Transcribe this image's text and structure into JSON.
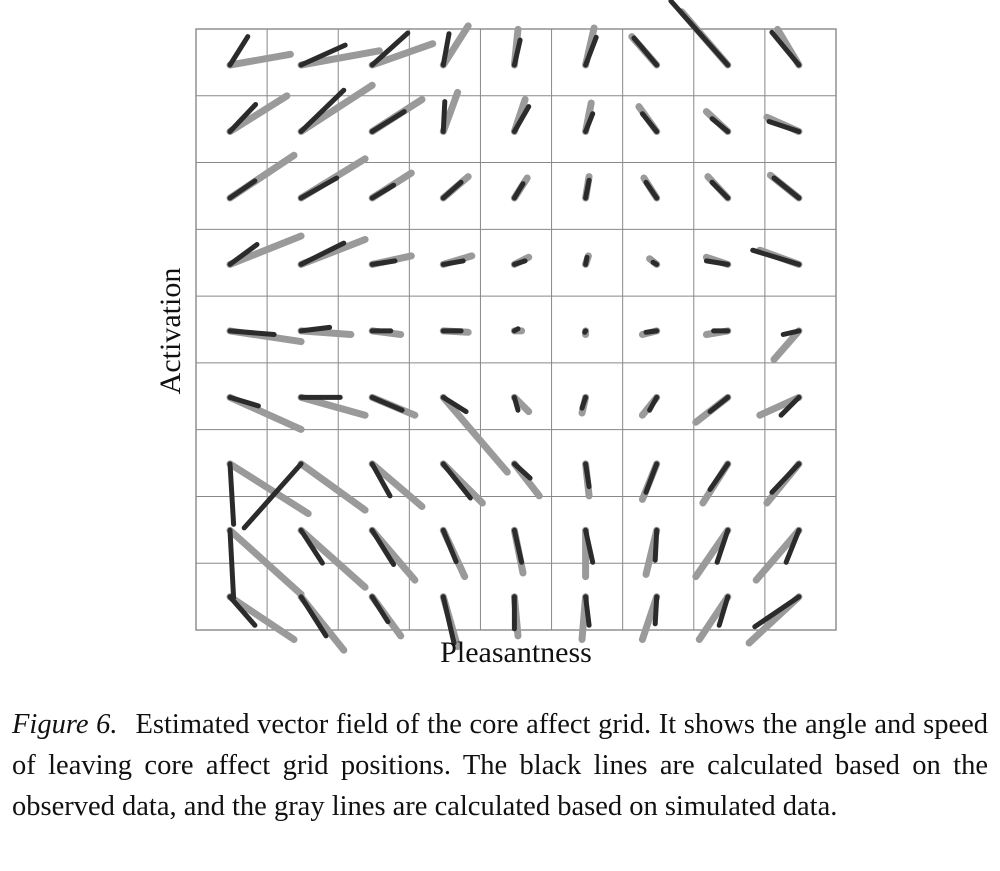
{
  "chart_data": {
    "type": "vector_field",
    "xlabel": "Pleasantness",
    "ylabel": "Activation",
    "grid_size": 9,
    "colors": {
      "observed": "#2b2b2b",
      "simulated": "#9a9a9a",
      "grid": "#888888"
    },
    "observed_vectors": [
      [
        [
          0.25,
          -0.4
        ],
        [
          0.62,
          -0.28
        ],
        [
          0.5,
          -0.45
        ],
        [
          0.08,
          -0.44
        ],
        [
          0.08,
          -0.35
        ],
        [
          0.15,
          -0.39
        ],
        [
          -0.32,
          -0.38
        ],
        [
          -0.8,
          -0.9
        ],
        [
          -0.38,
          -0.46
        ]
      ],
      [
        [
          0.36,
          -0.38
        ],
        [
          0.6,
          -0.58
        ],
        [
          0.45,
          -0.28
        ],
        [
          0.02,
          -0.42
        ],
        [
          0.2,
          -0.35
        ],
        [
          0.1,
          -0.25
        ],
        [
          -0.2,
          -0.25
        ],
        [
          -0.22,
          -0.18
        ],
        [
          -0.42,
          -0.14
        ]
      ],
      [
        [
          0.35,
          -0.24
        ],
        [
          0.5,
          -0.28
        ],
        [
          0.3,
          -0.18
        ],
        [
          0.25,
          -0.22
        ],
        [
          0.12,
          -0.2
        ],
        [
          0.05,
          -0.25
        ],
        [
          -0.15,
          -0.22
        ],
        [
          -0.22,
          -0.22
        ],
        [
          -0.35,
          -0.28
        ]
      ],
      [
        [
          0.38,
          -0.28
        ],
        [
          0.6,
          -0.3
        ],
        [
          0.32,
          -0.05
        ],
        [
          0.28,
          -0.05
        ],
        [
          0.15,
          -0.05
        ],
        [
          0.02,
          -0.1
        ],
        [
          -0.05,
          -0.03
        ],
        [
          -0.3,
          -0.05
        ],
        [
          -0.65,
          -0.2
        ]
      ],
      [
        [
          0.62,
          0.05
        ],
        [
          0.4,
          -0.05
        ],
        [
          0.26,
          0.0
        ],
        [
          0.25,
          0.0
        ],
        [
          0.05,
          -0.03
        ],
        [
          -0.01,
          0.02
        ],
        [
          -0.15,
          0.02
        ],
        [
          -0.2,
          0.0
        ],
        [
          -0.22,
          0.05
        ]
      ],
      [
        [
          0.4,
          0.12
        ],
        [
          0.55,
          0.0
        ],
        [
          0.42,
          0.18
        ],
        [
          0.32,
          0.2
        ],
        [
          0.05,
          0.18
        ],
        [
          -0.05,
          0.15
        ],
        [
          -0.1,
          0.18
        ],
        [
          -0.25,
          0.2
        ],
        [
          -0.25,
          0.25
        ]
      ],
      [
        [
          0.05,
          0.85
        ],
        [
          -0.8,
          0.9
        ],
        [
          0.25,
          0.45
        ],
        [
          0.38,
          0.48
        ],
        [
          0.22,
          0.2
        ],
        [
          0.05,
          0.32
        ],
        [
          -0.15,
          0.4
        ],
        [
          -0.25,
          0.36
        ],
        [
          -0.38,
          0.4
        ]
      ],
      [
        [
          0.05,
          0.95
        ],
        [
          0.3,
          0.46
        ],
        [
          0.3,
          0.48
        ],
        [
          0.18,
          0.44
        ],
        [
          0.1,
          0.45
        ],
        [
          0.1,
          0.45
        ],
        [
          -0.02,
          0.42
        ],
        [
          -0.15,
          0.45
        ],
        [
          -0.18,
          0.45
        ]
      ],
      [
        [
          0.35,
          0.4
        ],
        [
          0.35,
          0.55
        ],
        [
          0.22,
          0.35
        ],
        [
          0.15,
          0.65
        ],
        [
          0.0,
          0.45
        ],
        [
          0.05,
          0.4
        ],
        [
          -0.02,
          0.38
        ],
        [
          -0.12,
          0.4
        ],
        [
          -0.62,
          0.42
        ]
      ]
    ],
    "simulated_vectors": [
      [
        [
          0.85,
          -0.15
        ],
        [
          1.1,
          -0.2
        ],
        [
          0.85,
          -0.3
        ],
        [
          0.35,
          -0.55
        ],
        [
          0.05,
          -0.5
        ],
        [
          0.12,
          -0.52
        ],
        [
          -0.35,
          -0.4
        ],
        [
          -0.65,
          -0.75
        ],
        [
          -0.3,
          -0.5
        ]
      ],
      [
        [
          0.8,
          -0.5
        ],
        [
          1.0,
          -0.65
        ],
        [
          0.7,
          -0.45
        ],
        [
          0.2,
          -0.55
        ],
        [
          0.15,
          -0.45
        ],
        [
          0.08,
          -0.4
        ],
        [
          -0.25,
          -0.35
        ],
        [
          -0.3,
          -0.28
        ],
        [
          -0.45,
          -0.2
        ]
      ],
      [
        [
          0.9,
          -0.6
        ],
        [
          0.9,
          -0.55
        ],
        [
          0.55,
          -0.35
        ],
        [
          0.35,
          -0.3
        ],
        [
          0.18,
          -0.28
        ],
        [
          0.05,
          -0.3
        ],
        [
          -0.18,
          -0.28
        ],
        [
          -0.28,
          -0.3
        ],
        [
          -0.4,
          -0.32
        ]
      ],
      [
        [
          1.0,
          -0.4
        ],
        [
          0.9,
          -0.35
        ],
        [
          0.55,
          -0.12
        ],
        [
          0.4,
          -0.12
        ],
        [
          0.2,
          -0.1
        ],
        [
          0.04,
          -0.12
        ],
        [
          -0.1,
          -0.08
        ],
        [
          -0.3,
          -0.1
        ],
        [
          -0.55,
          -0.2
        ]
      ],
      [
        [
          1.0,
          0.15
        ],
        [
          0.7,
          0.05
        ],
        [
          0.4,
          0.05
        ],
        [
          0.35,
          0.02
        ],
        [
          0.1,
          0.0
        ],
        [
          0.0,
          0.05
        ],
        [
          -0.2,
          0.05
        ],
        [
          -0.3,
          0.05
        ],
        [
          -0.35,
          0.4
        ]
      ],
      [
        [
          1.0,
          0.45
        ],
        [
          0.9,
          0.25
        ],
        [
          0.6,
          0.25
        ],
        [
          0.9,
          1.05
        ],
        [
          0.2,
          0.2
        ],
        [
          -0.05,
          0.22
        ],
        [
          -0.2,
          0.25
        ],
        [
          -0.45,
          0.35
        ],
        [
          -0.55,
          0.25
        ]
      ],
      [
        [
          1.1,
          0.7
        ],
        [
          0.9,
          0.65
        ],
        [
          0.7,
          0.6
        ],
        [
          0.55,
          0.55
        ],
        [
          0.35,
          0.45
        ],
        [
          0.05,
          0.45
        ],
        [
          -0.2,
          0.5
        ],
        [
          -0.35,
          0.55
        ],
        [
          -0.45,
          0.55
        ]
      ],
      [
        [
          1.0,
          0.9
        ],
        [
          0.9,
          0.8
        ],
        [
          0.6,
          0.7
        ],
        [
          0.3,
          0.65
        ],
        [
          0.12,
          0.6
        ],
        [
          0.0,
          0.65
        ],
        [
          -0.15,
          0.62
        ],
        [
          -0.45,
          0.65
        ],
        [
          -0.6,
          0.7
        ]
      ],
      [
        [
          0.9,
          0.6
        ],
        [
          0.6,
          0.75
        ],
        [
          0.4,
          0.55
        ],
        [
          0.2,
          0.7
        ],
        [
          0.05,
          0.55
        ],
        [
          -0.05,
          0.6
        ],
        [
          -0.2,
          0.6
        ],
        [
          -0.4,
          0.6
        ],
        [
          -0.7,
          0.65
        ]
      ]
    ]
  },
  "caption": {
    "label": "Figure 6.",
    "text": "Estimated vector field of the core affect grid. It shows the angle and speed of leaving core affect grid positions. The black lines are calculated based on the observed data, and the gray lines are calculated based on simulated data."
  }
}
